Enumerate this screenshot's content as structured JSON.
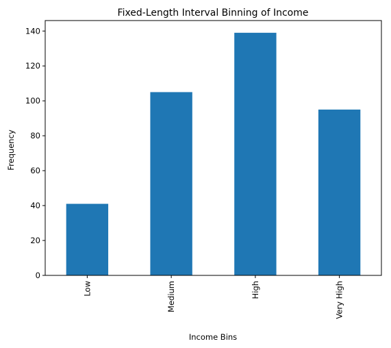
{
  "chart_data": {
    "type": "bar",
    "title": "Fixed-Length Interval Binning of Income",
    "xlabel": "Income Bins",
    "ylabel": "Frequency",
    "categories": [
      "Low",
      "Medium",
      "High",
      "Very High"
    ],
    "values": [
      41,
      105,
      139,
      95
    ],
    "ylim": [
      0,
      146
    ],
    "yticks": [
      0,
      20,
      40,
      60,
      80,
      100,
      120,
      140
    ],
    "grid": false,
    "legend": "none",
    "bar_color": "#1f77b4"
  }
}
